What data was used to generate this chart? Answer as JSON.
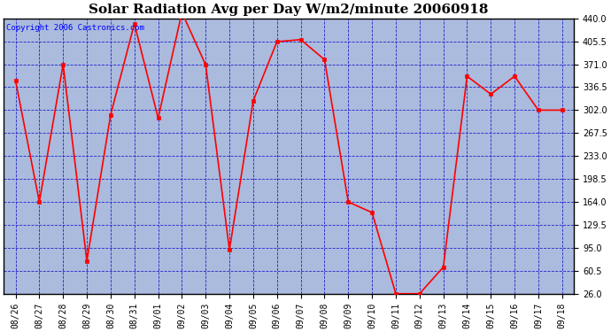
{
  "title": "Solar Radiation Avg per Day W/m2/minute 20060918",
  "copyright": "Copyright 2006 Castronics.com",
  "labels": [
    "08/26",
    "08/27",
    "08/28",
    "08/29",
    "08/30",
    "08/31",
    "09/01",
    "09/02",
    "09/03",
    "09/04",
    "09/05",
    "09/06",
    "09/07",
    "09/08",
    "09/09",
    "09/10",
    "09/11",
    "09/12",
    "09/13",
    "09/14",
    "09/15",
    "09/16",
    "09/17",
    "09/18"
  ],
  "values": [
    346,
    164,
    371,
    75,
    295,
    432,
    290,
    449,
    370,
    92,
    316,
    405,
    408,
    378,
    164,
    148,
    26,
    26,
    66,
    353,
    326,
    353,
    302,
    302
  ],
  "ylim": [
    26.0,
    440.0
  ],
  "yticks": [
    26.0,
    60.5,
    95.0,
    129.5,
    164.0,
    198.5,
    233.0,
    267.5,
    302.0,
    336.5,
    371.0,
    405.5,
    440.0
  ],
  "line_color": "red",
  "marker": "s",
  "marker_color": "red",
  "marker_size": 3,
  "grid_color": "#2222cc",
  "plot_bg_color": "#aabbdd",
  "title_fontsize": 11,
  "tick_fontsize": 7,
  "copyright_fontsize": 6.5
}
